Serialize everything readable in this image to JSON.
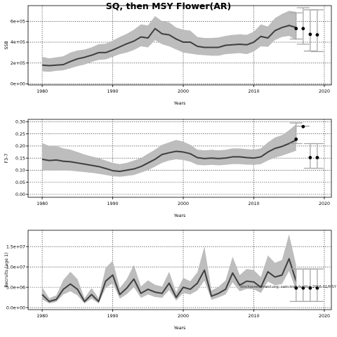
{
  "figure": {
    "title": "SQ, then MSY Flower(AR)",
    "footnote": "stockassessment.org: sam-tmb-fsaithe-2016-01/MSY"
  },
  "colors": {
    "band": "#bdbdbd",
    "line": "#3f3f3f",
    "points": "#000000",
    "errorbars": "#a6a6a6",
    "grid": "#000000"
  },
  "chart_data": [
    {
      "type": "line",
      "panel": "ssb",
      "title": "",
      "xlabel": "Years",
      "ylabel": "SSB",
      "xlim": [
        1978,
        2021
      ],
      "ylim": [
        -10000,
        750000
      ],
      "grid": true,
      "x_ticks": [
        1980,
        1990,
        2000,
        2010,
        2020
      ],
      "x_tick_labels": [
        "1980",
        "1990",
        "2000",
        "2010",
        "2020"
      ],
      "y_ticks": [
        0,
        200000,
        400000,
        600000
      ],
      "y_tick_labels": [
        "0e+00",
        "2e+05",
        "4e+05",
        "6e+05"
      ],
      "series": [
        {
          "x": [
            1980,
            1981,
            1982,
            1983,
            1984,
            1985,
            1986,
            1987,
            1988,
            1989,
            1990,
            1991,
            1992,
            1993,
            1994,
            1995,
            1996,
            1997,
            1998,
            1999,
            2000,
            2001,
            2002,
            2003,
            2004,
            2005,
            2006,
            2007,
            2008,
            2009,
            2010,
            2011,
            2012,
            2013,
            2014,
            2015,
            2016
          ],
          "y": [
            180000,
            175000,
            180000,
            185000,
            215000,
            240000,
            255000,
            275000,
            300000,
            300000,
            325000,
            355000,
            385000,
            410000,
            450000,
            440000,
            530000,
            480000,
            470000,
            430000,
            400000,
            400000,
            360000,
            350000,
            350000,
            350000,
            370000,
            375000,
            380000,
            375000,
            400000,
            455000,
            440000,
            510000,
            540000,
            560000,
            540000
          ],
          "lower": [
            120000,
            115000,
            125000,
            130000,
            150000,
            170000,
            185000,
            210000,
            230000,
            235000,
            260000,
            285000,
            300000,
            325000,
            360000,
            350000,
            420000,
            380000,
            360000,
            330000,
            300000,
            290000,
            280000,
            275000,
            270000,
            270000,
            285000,
            290000,
            295000,
            285000,
            310000,
            360000,
            355000,
            420000,
            450000,
            460000,
            420000
          ],
          "upper": [
            260000,
            245000,
            255000,
            265000,
            300000,
            320000,
            330000,
            350000,
            380000,
            385000,
            415000,
            450000,
            480000,
            520000,
            570000,
            560000,
            650000,
            600000,
            590000,
            540000,
            520000,
            510000,
            450000,
            440000,
            440000,
            445000,
            460000,
            470000,
            475000,
            470000,
            500000,
            570000,
            550000,
            630000,
            670000,
            700000,
            690000
          ]
        }
      ],
      "forecast": {
        "x": [
          2016,
          2017,
          2018,
          2019
        ],
        "y": [
          530000,
          530000,
          475000,
          470000
        ],
        "lower": [
          430000,
          380000,
          315000,
          310000
        ],
        "upper": [
          680000,
          730000,
          710000,
          710000
        ]
      }
    },
    {
      "type": "line",
      "panel": "fbar",
      "title": "",
      "xlabel": "Years",
      "ylabel": "F3-7",
      "xlim": [
        1978,
        2021
      ],
      "ylim": [
        -0.012,
        0.31
      ],
      "grid": true,
      "x_ticks": [
        1980,
        1990,
        2000,
        2010,
        2020
      ],
      "x_tick_labels": [
        "1980",
        "1990",
        "2000",
        "2010",
        "2020"
      ],
      "y_ticks": [
        0.0,
        0.05,
        0.1,
        0.15,
        0.2,
        0.25,
        0.3
      ],
      "y_tick_labels": [
        "0.00",
        "0.05",
        "0.10",
        "0.15",
        "0.20",
        "0.25",
        "0.30"
      ],
      "series": [
        {
          "x": [
            1980,
            1981,
            1982,
            1983,
            1984,
            1985,
            1986,
            1987,
            1988,
            1989,
            1990,
            1991,
            1992,
            1993,
            1994,
            1995,
            1996,
            1997,
            1998,
            1999,
            2000,
            2001,
            2002,
            2003,
            2004,
            2005,
            2006,
            2007,
            2008,
            2009,
            2010,
            2011,
            2012,
            2013,
            2014,
            2015,
            2016
          ],
          "y": [
            0.145,
            0.14,
            0.142,
            0.137,
            0.135,
            0.13,
            0.125,
            0.12,
            0.115,
            0.107,
            0.098,
            0.095,
            0.1,
            0.105,
            0.115,
            0.13,
            0.145,
            0.165,
            0.172,
            0.178,
            0.175,
            0.168,
            0.152,
            0.148,
            0.15,
            0.148,
            0.15,
            0.155,
            0.155,
            0.152,
            0.15,
            0.155,
            0.175,
            0.19,
            0.198,
            0.21,
            0.225
          ],
          "lower": [
            0.1,
            0.1,
            0.1,
            0.1,
            0.098,
            0.095,
            0.092,
            0.089,
            0.085,
            0.08,
            0.075,
            0.073,
            0.076,
            0.08,
            0.09,
            0.1,
            0.115,
            0.13,
            0.14,
            0.145,
            0.142,
            0.135,
            0.122,
            0.12,
            0.122,
            0.12,
            0.122,
            0.125,
            0.125,
            0.123,
            0.122,
            0.125,
            0.14,
            0.152,
            0.16,
            0.17,
            0.18
          ],
          "upper": [
            0.212,
            0.2,
            0.2,
            0.19,
            0.185,
            0.175,
            0.165,
            0.157,
            0.15,
            0.14,
            0.13,
            0.125,
            0.13,
            0.14,
            0.15,
            0.168,
            0.185,
            0.205,
            0.215,
            0.225,
            0.218,
            0.205,
            0.185,
            0.182,
            0.184,
            0.182,
            0.184,
            0.19,
            0.19,
            0.187,
            0.185,
            0.19,
            0.215,
            0.235,
            0.245,
            0.265,
            0.29
          ]
        }
      ],
      "forecast": {
        "x": [
          2016,
          2017,
          2018,
          2019
        ],
        "y": [
          0.228,
          0.28,
          0.152,
          0.152
        ],
        "lower": [
          0.21,
          0.282,
          0.108,
          0.108
        ],
        "upper": [
          0.295,
          0.282,
          0.21,
          0.21
        ]
      }
    },
    {
      "type": "line",
      "panel": "recruits",
      "title": "",
      "xlabel": "Years",
      "ylabel": "Recruits (age 1)",
      "xlim": [
        1978,
        2021
      ],
      "ylim": [
        -500000,
        19000000
      ],
      "grid": true,
      "x_ticks": [
        1980,
        1990,
        2000,
        2010,
        2020
      ],
      "x_tick_labels": [
        "1980",
        "1990",
        "2000",
        "2010",
        "2020"
      ],
      "y_ticks": [
        0,
        5000000,
        10000000,
        15000000
      ],
      "y_tick_labels": [
        "0.0e+00",
        "5.0e+06",
        "1.0e+07",
        "1.5e+07"
      ],
      "series": [
        {
          "x": [
            1980,
            1981,
            1982,
            1983,
            1984,
            1985,
            1986,
            1987,
            1988,
            1989,
            1990,
            1991,
            1992,
            1993,
            1994,
            1995,
            1996,
            1997,
            1998,
            1999,
            2000,
            2001,
            2002,
            2003,
            2004,
            2005,
            2006,
            2007,
            2008,
            2009,
            2010,
            2011,
            2012,
            2013,
            2014,
            2015,
            2016
          ],
          "y": [
            3200000,
            1500000,
            2000000,
            4500000,
            5800000,
            4500000,
            1500000,
            3200000,
            1500000,
            6500000,
            8000000,
            3200000,
            4800000,
            7000000,
            3500000,
            4500000,
            3800000,
            3500000,
            6000000,
            2500000,
            5000000,
            4500000,
            6000000,
            9200000,
            2800000,
            3500000,
            4500000,
            8500000,
            5500000,
            6500000,
            6300000,
            5000000,
            8800000,
            7500000,
            8000000,
            12000000,
            6500000
          ],
          "lower": [
            2000000,
            1000000,
            1400000,
            3200000,
            4000000,
            3000000,
            1000000,
            2200000,
            1000000,
            4800000,
            6000000,
            2200000,
            3300000,
            5000000,
            2400000,
            3200000,
            2600000,
            2400000,
            4300000,
            1700000,
            3600000,
            3200000,
            4200000,
            6600000,
            1900000,
            2500000,
            3200000,
            6200000,
            4000000,
            4600000,
            4500000,
            3600000,
            6400000,
            5500000,
            5800000,
            9000000,
            4200000
          ],
          "upper": [
            5000000,
            2300000,
            3000000,
            6800000,
            8800000,
            7000000,
            2300000,
            4800000,
            2300000,
            9800000,
            11500000,
            4800000,
            7000000,
            10500000,
            5200000,
            6700000,
            5600000,
            5200000,
            8800000,
            3800000,
            7300000,
            6500000,
            8700000,
            15000000,
            4200000,
            5100000,
            6700000,
            12500000,
            8000000,
            9500000,
            9200000,
            7500000,
            12800000,
            11000000,
            11700000,
            18000000,
            10500000
          ]
        }
      ],
      "forecast": {
        "x": [
          2016,
          2017,
          2018,
          2019
        ],
        "y": [
          4800000,
          4800000,
          4800000,
          4800000
        ],
        "lower": [
          1500000,
          1500000,
          1500000,
          1500000
        ],
        "upper": [
          9500000,
          9500000,
          9500000,
          9500000
        ]
      }
    }
  ]
}
